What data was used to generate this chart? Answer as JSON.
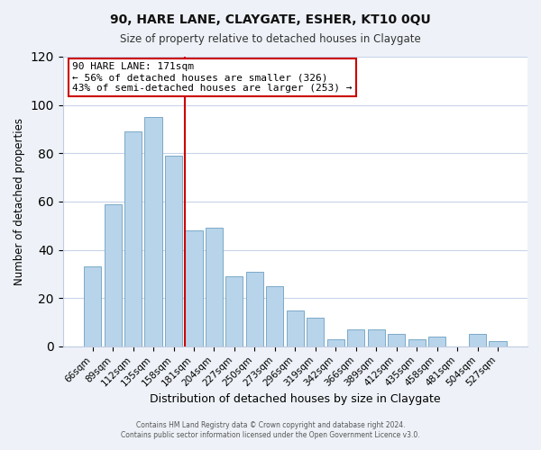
{
  "title": "90, HARE LANE, CLAYGATE, ESHER, KT10 0QU",
  "subtitle": "Size of property relative to detached houses in Claygate",
  "xlabel": "Distribution of detached houses by size in Claygate",
  "ylabel": "Number of detached properties",
  "categories": [
    "66sqm",
    "89sqm",
    "112sqm",
    "135sqm",
    "158sqm",
    "181sqm",
    "204sqm",
    "227sqm",
    "250sqm",
    "273sqm",
    "296sqm",
    "319sqm",
    "342sqm",
    "366sqm",
    "389sqm",
    "412sqm",
    "435sqm",
    "458sqm",
    "481sqm",
    "504sqm",
    "527sqm"
  ],
  "values": [
    33,
    59,
    89,
    95,
    79,
    48,
    49,
    29,
    31,
    25,
    15,
    12,
    3,
    7,
    7,
    5,
    3,
    4,
    0,
    5,
    2
  ],
  "bar_color": "#b8d4ea",
  "bar_edge_color": "#7aaac8",
  "vline_x_index": 5,
  "vline_color": "#cc0000",
  "annotation_text": "90 HARE LANE: 171sqm\n← 56% of detached houses are smaller (326)\n43% of semi-detached houses are larger (253) →",
  "annotation_box_edge_color": "#cc0000",
  "ylim": [
    0,
    120
  ],
  "yticks": [
    0,
    20,
    40,
    60,
    80,
    100,
    120
  ],
  "footer_line1": "Contains HM Land Registry data © Crown copyright and database right 2024.",
  "footer_line2": "Contains public sector information licensed under the Open Government Licence v3.0.",
  "background_color": "#eef2f8",
  "plot_bg_color": "#ffffff",
  "grid_color": "#c8d4e8"
}
